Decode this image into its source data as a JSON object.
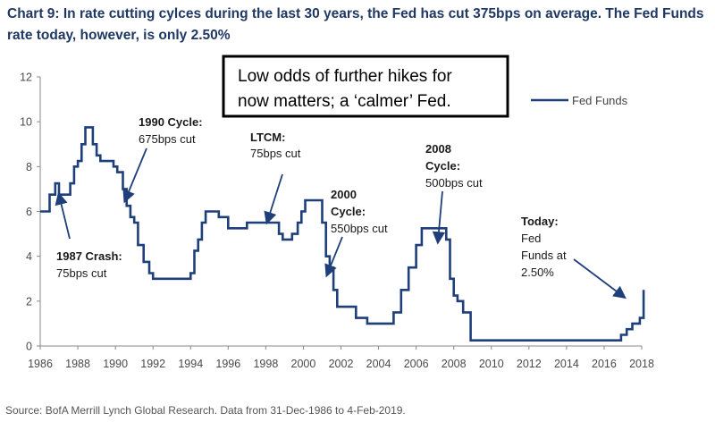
{
  "title": "Chart 9: In rate cutting cylces during the last 30 years, the Fed has cut 375bps on average. The Fed Funds rate today, however, is only 2.50%",
  "source": "Source: BofA Merrill Lynch Global Research. Data from 31-Dec-1986 to 4-Feb-2019.",
  "callout": {
    "line1": "Low odds of further hikes for",
    "line2": "now matters; a ‘calmer’ Fed."
  },
  "colors": {
    "series": "#1f3f7a",
    "axis": "#888888",
    "arrow": "#1f3f7a"
  },
  "chart_data": {
    "type": "line",
    "ylim": [
      0,
      12
    ],
    "xlim": [
      1986,
      2018.3
    ],
    "yticks": [
      "0",
      "2",
      "4",
      "6",
      "8",
      "10",
      "12"
    ],
    "xticks": [
      "1986",
      "1988",
      "1990",
      "1992",
      "1994",
      "1996",
      "1998",
      "2000",
      "2002",
      "2004",
      "2006",
      "2008",
      "2010",
      "2012",
      "2014",
      "2016",
      "2018"
    ],
    "grid": false,
    "legend_position": "top-right",
    "series": [
      {
        "name": "Fed Funds",
        "step": true,
        "x": [
          1986.0,
          1986.5,
          1986.8,
          1987.0,
          1987.3,
          1987.6,
          1987.8,
          1988.0,
          1988.2,
          1988.4,
          1988.6,
          1988.8,
          1989.0,
          1989.2,
          1989.6,
          1989.9,
          1990.1,
          1990.4,
          1990.6,
          1990.8,
          1991.0,
          1991.2,
          1991.5,
          1991.8,
          1992.0,
          1992.5,
          1993.0,
          1994.0,
          1994.2,
          1994.4,
          1994.6,
          1994.8,
          1995.0,
          1995.5,
          1996.0,
          1996.5,
          1997.0,
          1998.0,
          1998.7,
          1998.9,
          1999.2,
          1999.4,
          1999.7,
          1999.9,
          2000.1,
          2000.4,
          2001.0,
          2001.2,
          2001.4,
          2001.6,
          2001.8,
          2002.0,
          2002.8,
          2003.4,
          2004.4,
          2004.8,
          2005.2,
          2005.6,
          2006.0,
          2006.3,
          2006.5,
          2006.6,
          2007.6,
          2007.8,
          2008.0,
          2008.2,
          2008.5,
          2008.9,
          2015.9,
          2016.9,
          2017.2,
          2017.5,
          2017.9,
          2018.2,
          2018.5,
          2018.7,
          2018.9,
          2019.1
        ],
        "y": [
          6.0,
          6.75,
          7.25,
          6.75,
          6.75,
          7.25,
          8.0,
          8.25,
          9.0,
          9.75,
          9.75,
          9.0,
          8.5,
          8.25,
          8.25,
          8.0,
          7.75,
          7.0,
          6.25,
          5.75,
          5.5,
          4.5,
          3.75,
          3.25,
          3.0,
          3.0,
          3.0,
          3.25,
          4.25,
          4.75,
          5.5,
          6.0,
          6.0,
          5.75,
          5.25,
          5.25,
          5.5,
          5.5,
          5.0,
          4.75,
          4.75,
          5.0,
          5.5,
          6.0,
          6.5,
          6.5,
          5.5,
          4.0,
          3.5,
          2.5,
          1.75,
          1.75,
          1.25,
          1.0,
          1.0,
          1.5,
          2.5,
          3.5,
          4.5,
          5.25,
          5.25,
          5.25,
          4.75,
          3.0,
          2.25,
          2.0,
          1.5,
          0.25,
          0.25,
          0.5,
          0.75,
          1.0,
          1.25,
          1.5,
          1.75,
          2.0,
          2.25,
          2.5
        ]
      }
    ],
    "annotations": [
      {
        "bold": "1987 Crash:",
        "text": "75bps cut"
      },
      {
        "bold": "1990 Cycle:",
        "text": "675bps cut"
      },
      {
        "bold": "LTCM:",
        "text": "75bps cut"
      },
      {
        "bold": "2000",
        "bold2": "Cycle:",
        "text": "550bps cut"
      },
      {
        "bold": "2008",
        "bold2": "Cycle:",
        "text": "500bps cut"
      },
      {
        "bold": "Today:",
        "lines": [
          "Fed",
          "Funds at",
          "2.50%"
        ]
      }
    ]
  }
}
